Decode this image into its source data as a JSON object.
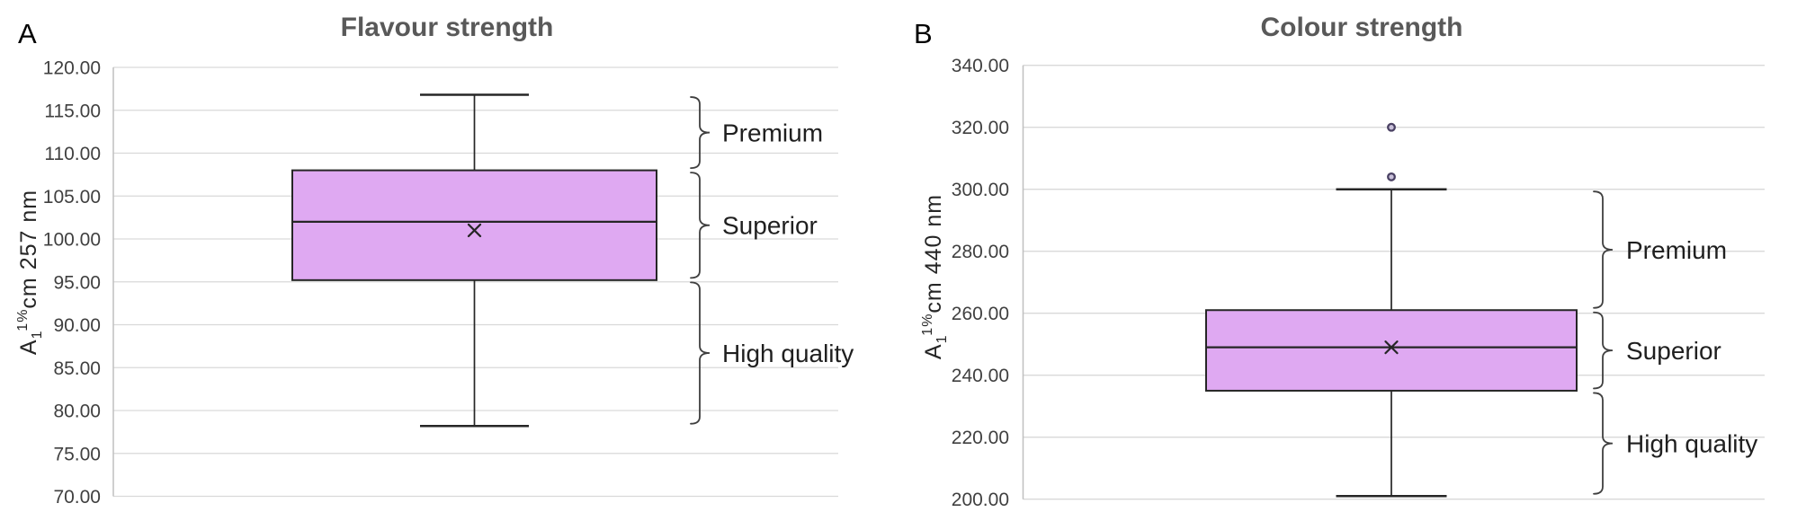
{
  "panel_letters": [
    "A",
    "B"
  ],
  "colors": {
    "box_fill": "#DFA9F2",
    "box_stroke": "#262626",
    "whisker": "#262626",
    "grid": "#D9D9D9",
    "axis_line": "#BFBFBF",
    "title": "#595959",
    "tick": "#404040",
    "brace": "#3F3F3F",
    "brace_label": "#1F1F1F",
    "mean_marker": "#262626",
    "outlier_stroke": "#4A4163",
    "outlier_fill": "#C9C1DA"
  },
  "chart_data": [
    {
      "type": "box",
      "title": "Flavour strength",
      "ylabel": "A1 1%cm 257 nm",
      "ylabel_parts": {
        "base": "A",
        "sub": "1",
        "sup": "1%",
        "rest": "cm 257 nm"
      },
      "ylim": [
        70,
        120
      ],
      "ytick_step": 5,
      "ytick_labels": [
        "120.00",
        "115.00",
        "110.00",
        "105.00",
        "100.00",
        "95.00",
        "90.00",
        "85.00",
        "80.00",
        "75.00",
        "70.00"
      ],
      "grid": true,
      "legend": "none",
      "series": [
        {
          "name": "Flavour strength",
          "whisker_low": 78.2,
          "q1": 95.2,
          "median": 102,
          "q3": 108,
          "whisker_high": 116.8,
          "mean": 101,
          "outliers": []
        }
      ],
      "annotations": [
        {
          "label": "Premium",
          "value_from": 108,
          "value_to": 116.8
        },
        {
          "label": "Superior",
          "value_from": 95.2,
          "value_to": 108
        },
        {
          "label": "High quality",
          "value_from": 78.2,
          "value_to": 95.2
        }
      ]
    },
    {
      "type": "box",
      "title": "Colour strength",
      "ylabel": "A1 1%cm 440 nm",
      "ylabel_parts": {
        "base": "A",
        "sub": "1",
        "sup": "1%",
        "rest": "cm 440 nm"
      },
      "ylim": [
        200,
        340
      ],
      "ytick_step": 20,
      "ytick_labels": [
        "340.00",
        "320.00",
        "300.00",
        "280.00",
        "260.00",
        "240.00",
        "220.00",
        "200.00"
      ],
      "grid": true,
      "legend": "none",
      "series": [
        {
          "name": "Colour strength",
          "whisker_low": 201,
          "q1": 235,
          "median": 249,
          "q3": 261,
          "whisker_high": 300,
          "mean": 249,
          "outliers": [
            320,
            304
          ]
        }
      ],
      "annotations": [
        {
          "label": "Premium",
          "value_from": 261,
          "value_to": 300
        },
        {
          "label": "Superior",
          "value_from": 235,
          "value_to": 261
        },
        {
          "label": "High quality",
          "value_from": 201,
          "value_to": 235
        }
      ]
    }
  ]
}
